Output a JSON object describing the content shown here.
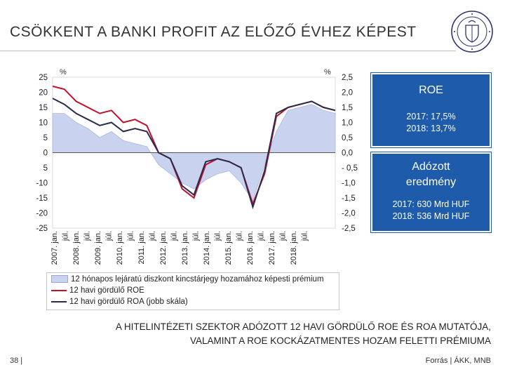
{
  "header": {
    "title": "CSÖKKENT A BANKI PROFIT AZ ELŐZŐ ÉVHEZ KÉPEST"
  },
  "seal": {
    "name": "seal-logo"
  },
  "boxes": [
    {
      "title": "ROE",
      "lines": [
        "2017: 17,5%",
        "2018: 13,7%"
      ]
    },
    {
      "title_lines": [
        "Adózott",
        "eredmény"
      ],
      "lines": [
        "2017: 630 Mrd HUF",
        "2018: 536 Mrd HUF"
      ]
    }
  ],
  "caption": {
    "line1": "A HITELINTÉZETI SZEKTOR ADÓZOTT 12 HAVI GÖRDÜLŐ ROE ÉS ROA MUTATÓJA,",
    "line2": "VALAMINT A ROE KOCKÁZATMENTES HOZAM FELETTI PRÉMIUMA"
  },
  "footer": {
    "page": "38 |",
    "source": "Forrás | ÁKK, MNB"
  },
  "colors": {
    "premium_fill": "#c9d3ef",
    "roe": "#c0122c",
    "roa": "#2b2c4d",
    "box": "#1f5bab"
  },
  "chart_data": {
    "type": "line",
    "left_unit": "%",
    "right_unit": "%",
    "left_ticks": [
      "25",
      "20",
      "15",
      "10",
      "5",
      "0",
      "5",
      "-10",
      "-15",
      "-20",
      "-25"
    ],
    "right_ticks": [
      "2,5",
      "2,0",
      "1,5",
      "1,0",
      "0,5",
      "0,0",
      "- 0,5",
      "-1,0",
      "-1,5",
      "-2,0",
      "-2,5"
    ],
    "ylim_left": [
      -25,
      25
    ],
    "ylim_right": [
      -2.5,
      2.5
    ],
    "x_labels": [
      "2007. jan.",
      "júl.",
      "2008. jan.",
      "júl.",
      "2009. jan.",
      "júl.",
      "2010. jan.",
      "júl.",
      "2011. jan.",
      "júl.",
      "2012. jan.",
      "júl.",
      "2013. jan.",
      "júl.",
      "2014. jan.",
      "júl.",
      "2015. jan.",
      "júl.",
      "2016. jan.",
      "júl.",
      "2017. jan.",
      "júl.",
      "2018. jan.",
      "júl."
    ],
    "x": [
      "2007. jan.",
      "2007. júl.",
      "2008. jan.",
      "2008. júl.",
      "2009. jan.",
      "2009. júl.",
      "2010. jan.",
      "2010. júl.",
      "2011. jan.",
      "2011. júl.",
      "2012. jan.",
      "2012. júl.",
      "2013. jan.",
      "2013. júl.",
      "2014. jan.",
      "2014. júl.",
      "2015. jan.",
      "2015. júl.",
      "2016. jan.",
      "2016. júl.",
      "2017. jan.",
      "2017. júl.",
      "2018. jan.",
      "2018. júl.",
      "2018. dec."
    ],
    "series": [
      {
        "name": "12 hónapos lejáratú diszkont kincstárjegy hozamához képesti prémium",
        "axis": "left",
        "style": "area",
        "values": [
          13,
          13,
          10,
          8,
          5,
          7,
          4,
          3,
          2,
          -4,
          -7,
          -10,
          -12,
          -9,
          -7,
          -6,
          -10,
          -16,
          -4,
          7,
          14,
          15,
          16,
          14,
          13
        ]
      },
      {
        "name": "12 havi gördülő ROE",
        "axis": "left",
        "style": "line",
        "values": [
          22,
          21,
          17,
          15,
          13,
          14,
          10,
          11,
          9,
          0,
          -2,
          -12,
          -15,
          -4,
          -2,
          -3,
          -5,
          -17,
          -7,
          12,
          15,
          16,
          17,
          15,
          14
        ]
      },
      {
        "name": "12 havi gördülő ROA (jobb skála)",
        "axis": "right",
        "style": "line",
        "values": [
          1.8,
          1.6,
          1.3,
          1.1,
          0.9,
          1.0,
          0.7,
          0.8,
          0.7,
          0.0,
          -0.2,
          -1.1,
          -1.4,
          -0.3,
          -0.2,
          -0.3,
          -0.5,
          -1.8,
          -0.6,
          1.3,
          1.5,
          1.6,
          1.7,
          1.5,
          1.4
        ]
      }
    ]
  }
}
